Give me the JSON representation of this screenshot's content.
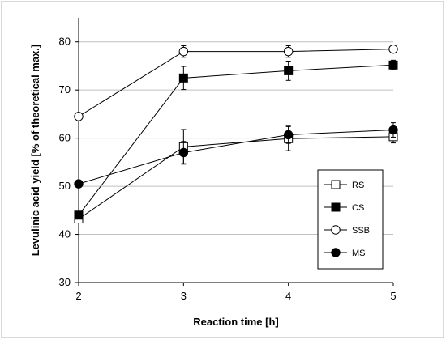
{
  "chart_data": {
    "type": "line",
    "xlabel": "Reaction time [h]",
    "ylabel": "Levulinic acid yield [% of theoretical max.]",
    "x": [
      2,
      3,
      4,
      5
    ],
    "xticks": [
      "2",
      "3",
      "4",
      "5"
    ],
    "xlim": [
      2,
      5
    ],
    "ylim": [
      30,
      85
    ],
    "yticks": [
      "30",
      "40",
      "50",
      "60",
      "70",
      "80"
    ],
    "grid": "horizontal",
    "legend_position": "bottom-right",
    "series": [
      {
        "name": "RS",
        "marker": "square-open",
        "values": [
          43.2,
          58.2,
          59.9,
          60.3
        ],
        "errors": [
          0,
          3.6,
          2.5,
          1.3
        ]
      },
      {
        "name": "CS",
        "marker": "square-filled",
        "values": [
          44.0,
          72.5,
          74.0,
          75.2
        ],
        "errors": [
          0,
          2.4,
          2.0,
          1.0
        ]
      },
      {
        "name": "SSB",
        "marker": "circle-open",
        "values": [
          64.5,
          78.0,
          78.0,
          78.5
        ],
        "errors": [
          0,
          1.2,
          1.2,
          0.8
        ]
      },
      {
        "name": "MS",
        "marker": "circle-filled",
        "values": [
          50.5,
          57.0,
          60.7,
          61.7
        ],
        "errors": [
          0,
          2.3,
          1.8,
          1.5
        ]
      }
    ],
    "colors": {
      "line": "#000000",
      "grid": "#bfbfbf",
      "marker_fill": "#000000",
      "marker_open": "#ffffff"
    }
  }
}
